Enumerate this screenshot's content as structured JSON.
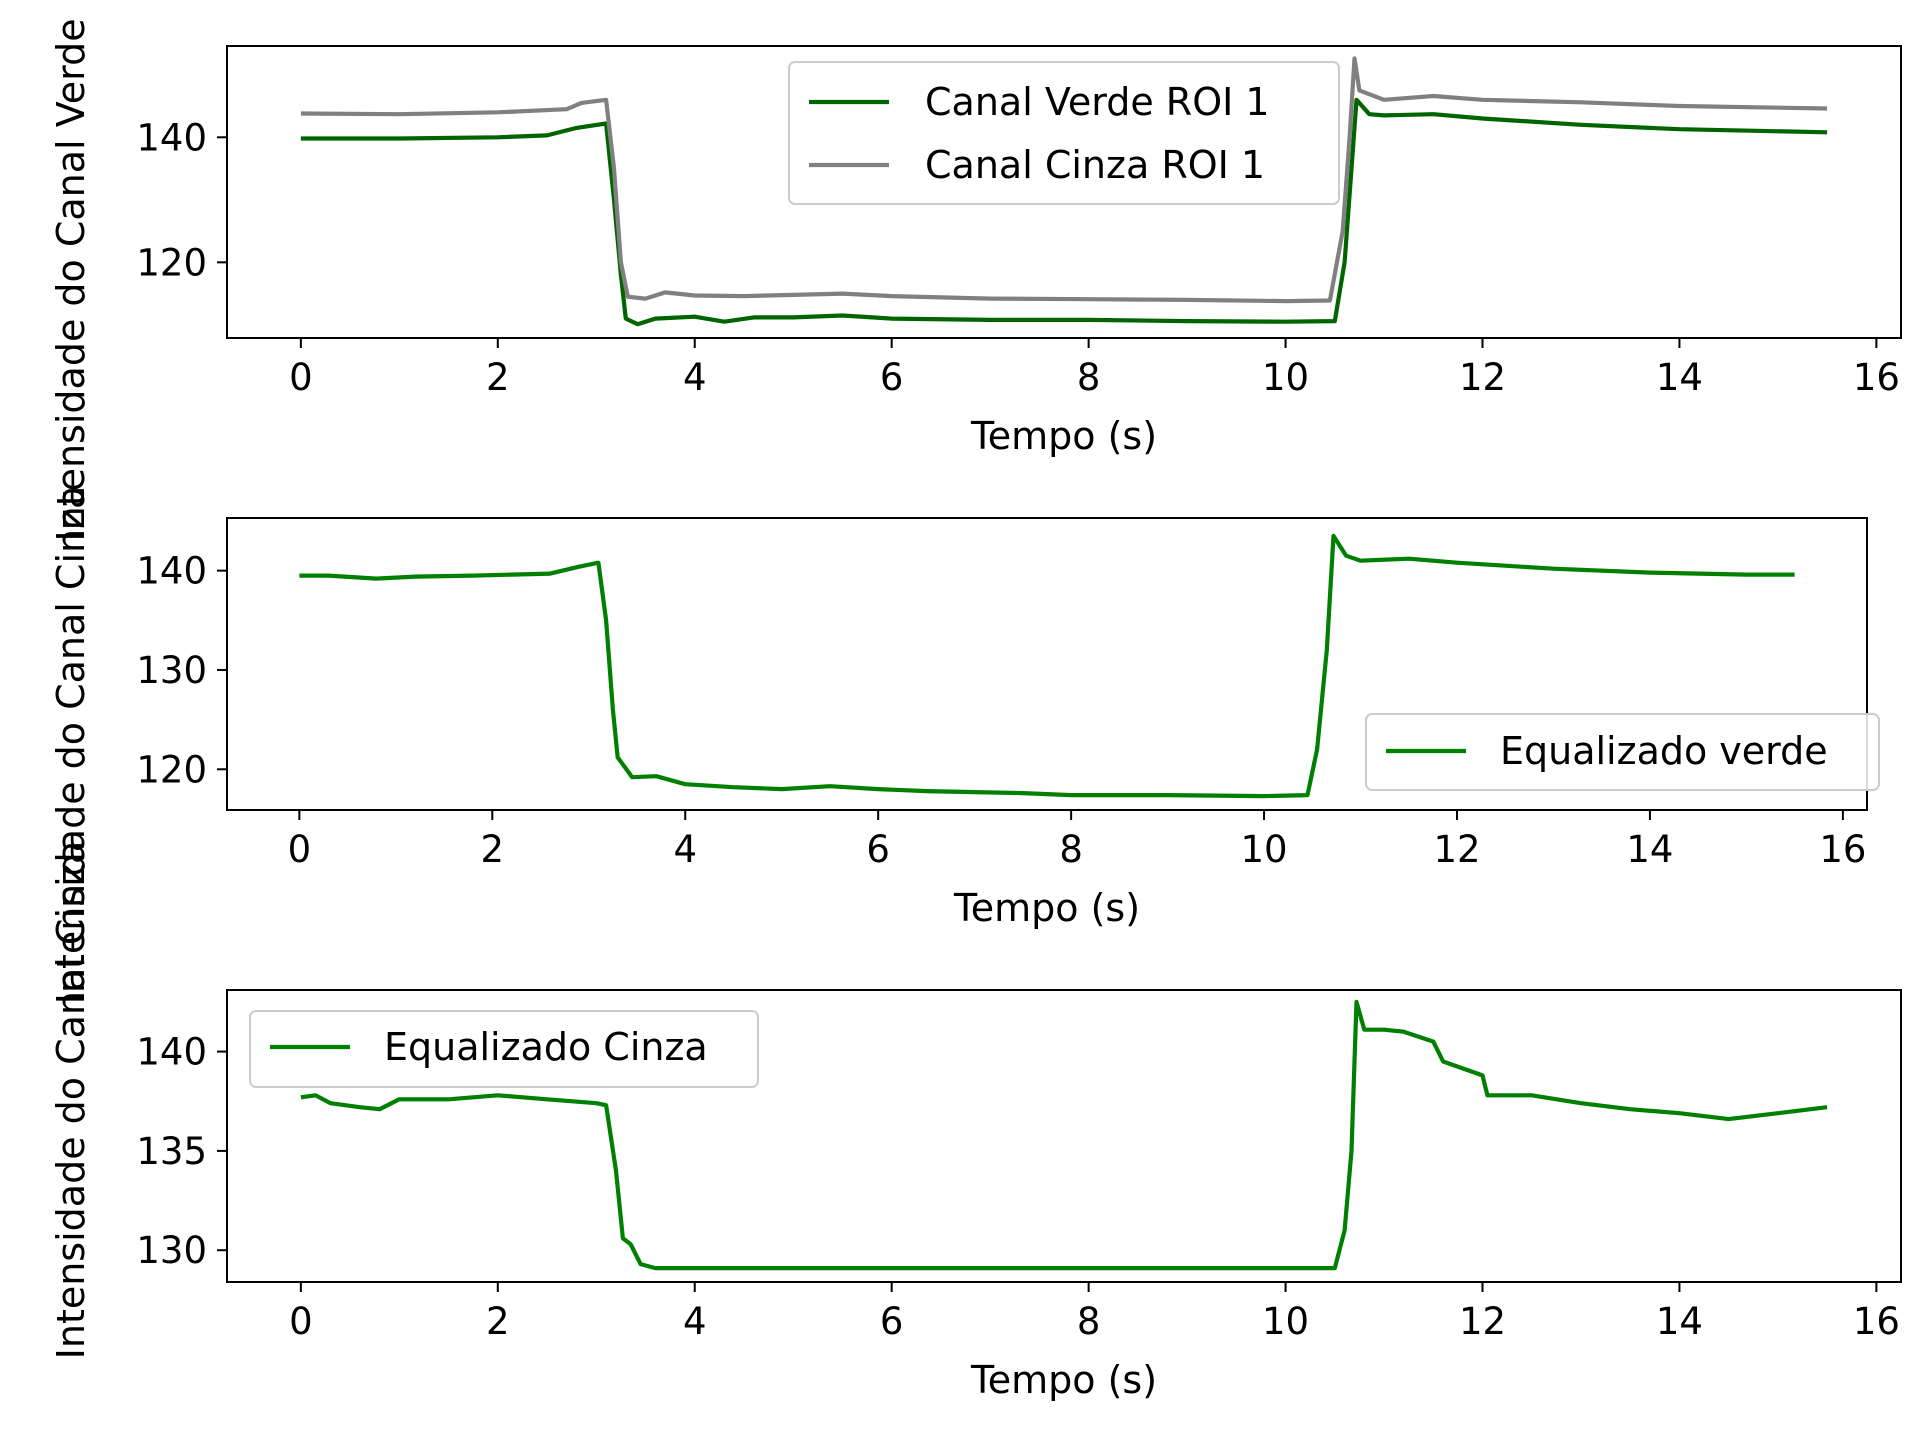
{
  "chart_data": [
    {
      "type": "line",
      "ylabel": "Intensidade do Canal Verde",
      "xlabel": "Tempo (s)",
      "xlim": [
        -0.75,
        16.25
      ],
      "ylim": [
        107.9,
        154.6
      ],
      "xticks": [
        "0",
        "2",
        "4",
        "6",
        "8",
        "10",
        "12",
        "14",
        "16"
      ],
      "yticks": [
        "120",
        "140"
      ],
      "legend_position": "upper center",
      "series": [
        {
          "name": "Canal Verde ROI 1",
          "color": "#006400",
          "points": [
            [
              0,
              139.8
            ],
            [
              0.5,
              139.8
            ],
            [
              1,
              139.8
            ],
            [
              2,
              140.0
            ],
            [
              2.5,
              140.3
            ],
            [
              2.8,
              141.5
            ],
            [
              3.1,
              142.2
            ],
            [
              3.18,
              130
            ],
            [
              3.25,
              118
            ],
            [
              3.3,
              111
            ],
            [
              3.42,
              110.1
            ],
            [
              3.6,
              111.0
            ],
            [
              4,
              111.3
            ],
            [
              4.3,
              110.5
            ],
            [
              4.6,
              111.2
            ],
            [
              5,
              111.2
            ],
            [
              5.5,
              111.5
            ],
            [
              6,
              111.0
            ],
            [
              7,
              110.8
            ],
            [
              8,
              110.8
            ],
            [
              9,
              110.6
            ],
            [
              10,
              110.5
            ],
            [
              10.5,
              110.6
            ],
            [
              10.6,
              120
            ],
            [
              10.67,
              135
            ],
            [
              10.72,
              146.0
            ],
            [
              10.85,
              143.7
            ],
            [
              11,
              143.5
            ],
            [
              11.5,
              143.7
            ],
            [
              12,
              143.0
            ],
            [
              13,
              142.0
            ],
            [
              14,
              141.3
            ],
            [
              15.5,
              140.8
            ]
          ]
        },
        {
          "name": "Canal Cinza ROI 1",
          "color": "#808080",
          "points": [
            [
              0,
              143.8
            ],
            [
              1,
              143.7
            ],
            [
              2,
              144.0
            ],
            [
              2.7,
              144.5
            ],
            [
              2.85,
              145.5
            ],
            [
              3.1,
              146.0
            ],
            [
              3.18,
              135
            ],
            [
              3.25,
              120
            ],
            [
              3.32,
              114.5
            ],
            [
              3.5,
              114.2
            ],
            [
              3.7,
              115.2
            ],
            [
              4,
              114.7
            ],
            [
              4.5,
              114.6
            ],
            [
              5,
              114.8
            ],
            [
              5.5,
              115.0
            ],
            [
              6,
              114.6
            ],
            [
              7,
              114.2
            ],
            [
              8,
              114.1
            ],
            [
              9,
              114.0
            ],
            [
              10,
              113.8
            ],
            [
              10.45,
              113.9
            ],
            [
              10.58,
              125
            ],
            [
              10.65,
              140
            ],
            [
              10.7,
              152.6
            ],
            [
              10.75,
              147.5
            ],
            [
              11,
              146.0
            ],
            [
              11.5,
              146.6
            ],
            [
              12,
              146.0
            ],
            [
              13,
              145.6
            ],
            [
              14,
              145.0
            ],
            [
              15.5,
              144.6
            ]
          ]
        }
      ]
    },
    {
      "type": "line",
      "ylabel": "Intensidade do Canal Cinza",
      "xlabel": "Tempo (s)",
      "xlim": [
        -0.75,
        16.25
      ],
      "ylim": [
        115.9,
        145.3
      ],
      "xticks": [
        "0",
        "2",
        "4",
        "6",
        "8",
        "10",
        "12",
        "14",
        "16"
      ],
      "yticks": [
        "120",
        "130",
        "140"
      ],
      "legend_position": "lower right",
      "series": [
        {
          "name": "Equalizado verde",
          "color": "#008000",
          "points": [
            [
              0,
              139.5
            ],
            [
              0.3,
              139.5
            ],
            [
              0.8,
              139.2
            ],
            [
              1.2,
              139.4
            ],
            [
              1.8,
              139.5
            ],
            [
              2.2,
              139.6
            ],
            [
              2.6,
              139.7
            ],
            [
              2.9,
              140.4
            ],
            [
              3.1,
              140.8
            ],
            [
              3.18,
              135
            ],
            [
              3.25,
              126
            ],
            [
              3.3,
              121.2
            ],
            [
              3.45,
              119.2
            ],
            [
              3.7,
              119.3
            ],
            [
              4,
              118.5
            ],
            [
              4.5,
              118.2
            ],
            [
              5,
              118.0
            ],
            [
              5.5,
              118.3
            ],
            [
              6,
              118.0
            ],
            [
              6.5,
              117.8
            ],
            [
              7,
              117.7
            ],
            [
              7.5,
              117.6
            ],
            [
              8,
              117.4
            ],
            [
              9,
              117.4
            ],
            [
              10,
              117.3
            ],
            [
              10.45,
              117.4
            ],
            [
              10.55,
              122
            ],
            [
              10.65,
              132
            ],
            [
              10.72,
              143.5
            ],
            [
              10.85,
              141.5
            ],
            [
              11,
              141.0
            ],
            [
              11.5,
              141.2
            ],
            [
              12,
              140.8
            ],
            [
              13,
              140.2
            ],
            [
              14,
              139.8
            ],
            [
              15,
              139.6
            ],
            [
              15.5,
              139.6
            ]
          ]
        }
      ]
    },
    {
      "type": "line",
      "ylabel": "Intensidade do Canal Cinza",
      "xlabel": "Tempo (s)",
      "xlim": [
        -0.75,
        16.25
      ],
      "ylim": [
        128.4,
        143.1
      ],
      "xticks": [
        "0",
        "2",
        "4",
        "6",
        "8",
        "10",
        "12",
        "14",
        "16"
      ],
      "yticks": [
        "130",
        "135",
        "140"
      ],
      "legend_position": "upper left",
      "series": [
        {
          "name": "Equalizado Cinza",
          "color": "#008000",
          "points": [
            [
              0,
              137.7
            ],
            [
              0.15,
              137.8
            ],
            [
              0.3,
              137.4
            ],
            [
              0.6,
              137.2
            ],
            [
              0.8,
              137.1
            ],
            [
              1,
              137.6
            ],
            [
              1.5,
              137.6
            ],
            [
              2,
              137.8
            ],
            [
              2.5,
              137.6
            ],
            [
              3,
              137.4
            ],
            [
              3.1,
              137.3
            ],
            [
              3.2,
              134
            ],
            [
              3.27,
              130.6
            ],
            [
              3.35,
              130.3
            ],
            [
              3.45,
              129.3
            ],
            [
              3.6,
              129.1
            ],
            [
              4,
              129.1
            ],
            [
              5,
              129.1
            ],
            [
              6,
              129.1
            ],
            [
              7,
              129.1
            ],
            [
              8,
              129.1
            ],
            [
              9,
              129.1
            ],
            [
              10,
              129.1
            ],
            [
              10.5,
              129.1
            ],
            [
              10.6,
              131
            ],
            [
              10.67,
              135
            ],
            [
              10.72,
              142.5
            ],
            [
              10.8,
              141.1
            ],
            [
              11,
              141.1
            ],
            [
              11.2,
              141.0
            ],
            [
              11.5,
              140.5
            ],
            [
              11.6,
              139.5
            ],
            [
              12,
              138.8
            ],
            [
              12.05,
              137.8
            ],
            [
              12.5,
              137.8
            ],
            [
              13,
              137.4
            ],
            [
              13.5,
              137.1
            ],
            [
              14,
              136.9
            ],
            [
              14.5,
              136.6
            ],
            [
              15,
              136.9
            ],
            [
              15.5,
              137.2
            ]
          ]
        }
      ]
    }
  ]
}
